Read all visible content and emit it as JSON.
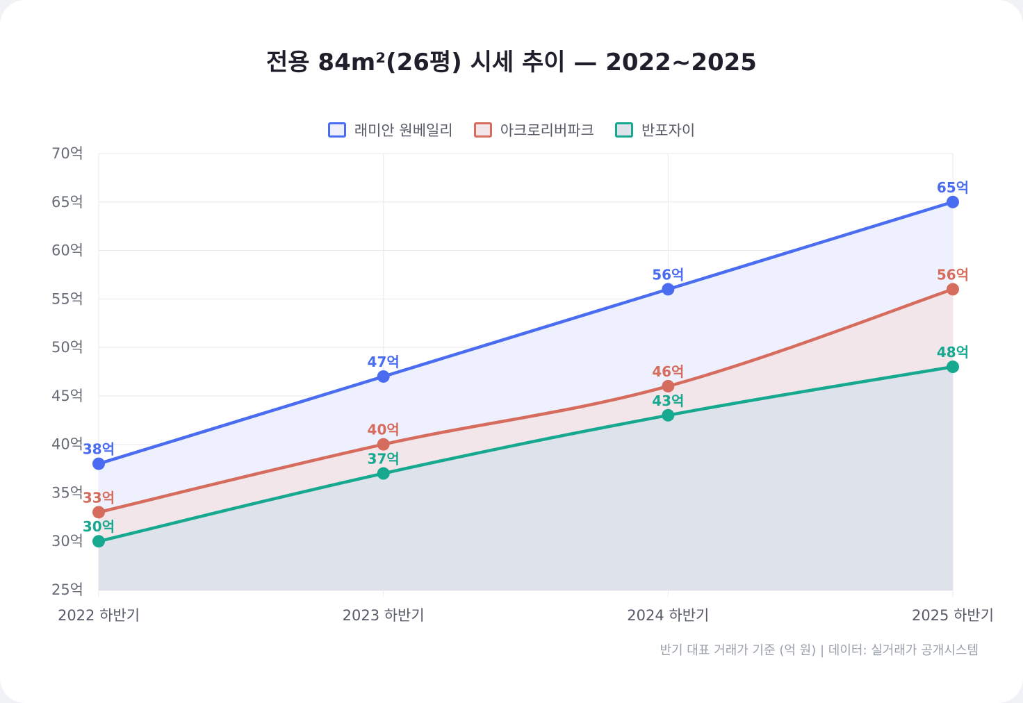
{
  "chart_data": {
    "type": "line",
    "title": "전용 84m²(26평) 시세 추이 — 2022~2025",
    "categories": [
      "2022 하반기",
      "2023 하반기",
      "2024 하반기",
      "2025 하반기"
    ],
    "ylim": [
      25,
      70
    ],
    "yticks": [
      25,
      30,
      35,
      40,
      45,
      50,
      55,
      60,
      65,
      70
    ],
    "tick_suffix": "억",
    "grid": true,
    "legend_position": "top-center",
    "filled_area": true,
    "series": [
      {
        "name": "래미안 원베일리",
        "values": [
          38,
          47,
          56,
          65
        ],
        "color": "#4a6cf0",
        "fill": "#eef1fd"
      },
      {
        "name": "아크로리버파크",
        "values": [
          33,
          40,
          46,
          56
        ],
        "color": "#d66c5e",
        "fill": "#f3e6ea"
      },
      {
        "name": "반포자이",
        "values": [
          30,
          37,
          43,
          48
        ],
        "color": "#16a98f",
        "fill": "#dee3eb"
      }
    ],
    "data_label_suffix": "억"
  },
  "footnote": "반기 대표 거래가 기준 (억 원) | 데이터: 실거래가 공개시스템"
}
